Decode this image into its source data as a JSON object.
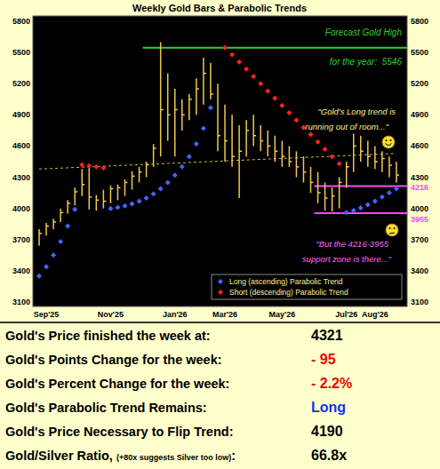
{
  "chart_data": {
    "type": "ohlc",
    "title": "Weekly Gold Bars & Parabolic Trends",
    "categories": [
      null,
      "Sep'25",
      null,
      null,
      null,
      null,
      null,
      null,
      null,
      null,
      "Nov'25",
      null,
      null,
      null,
      null,
      null,
      null,
      null,
      null,
      "Jan'26",
      null,
      null,
      null,
      null,
      null,
      null,
      "Mar'26",
      null,
      null,
      null,
      null,
      null,
      null,
      null,
      "May'26",
      null,
      null,
      null,
      null,
      null,
      null,
      null,
      null,
      "Jul'26",
      null,
      null,
      null,
      "Aug'26",
      null,
      null,
      null
    ],
    "ylim": [
      3100,
      5800
    ],
    "yticks": [
      3100,
      3400,
      3700,
      4000,
      4300,
      4600,
      4900,
      5200,
      5500,
      5800
    ],
    "grid": false,
    "legend": "lower right",
    "series": [
      {
        "type": "ohlc",
        "color": "#f0c850",
        "high": [
          3800,
          3860,
          3900,
          4000,
          4080,
          4200,
          4380,
          4390,
          4130,
          4180,
          4220,
          4230,
          4280,
          4360,
          4400,
          4450,
          4620,
          5600,
          5300,
          5150,
          5050,
          5100,
          5250,
          5450,
          5400,
          5200,
          5000,
          4900,
          4800,
          4850,
          4900,
          4800,
          4750,
          4700,
          4650,
          4600,
          4550,
          4500,
          4400,
          4350,
          4250,
          4200,
          4300,
          4450,
          4720,
          4700,
          4650,
          4600,
          4550,
          4500,
          4450
        ],
        "low": [
          3640,
          3740,
          3800,
          3870,
          3950,
          4030,
          4120,
          3990,
          3980,
          4000,
          4050,
          4080,
          4120,
          4180,
          4250,
          4300,
          4400,
          4500,
          4650,
          4500,
          4750,
          4850,
          4900,
          5000,
          5050,
          4550,
          4450,
          4400,
          4100,
          4500,
          4600,
          4550,
          4500,
          4450,
          4400,
          4400,
          4300,
          4250,
          4150,
          4050,
          3980,
          3970,
          4000,
          4200,
          4350,
          4450,
          4400,
          4380,
          4350,
          4300,
          4250
        ],
        "close": [
          3760,
          3830,
          3870,
          3960,
          4050,
          4160,
          4230,
          4110,
          4080,
          4070,
          4190,
          4200,
          4250,
          4310,
          4350,
          4420,
          4580,
          4950,
          4900,
          4950,
          4900,
          5050,
          5150,
          5300,
          5100,
          4700,
          4650,
          4500,
          4550,
          4750,
          4700,
          4650,
          4600,
          4550,
          4500,
          4450,
          4400,
          4350,
          4250,
          4150,
          4100,
          4120,
          4250,
          4400,
          4600,
          4550,
          4500,
          4450,
          4480,
          4416,
          4321
        ]
      },
      {
        "name": "Long (ascending) Parabolic Trend",
        "type": "scatter",
        "marker": "diamond",
        "color": "#4466ff",
        "values": [
          3350,
          3440,
          3550,
          3680,
          3830,
          3990,
          null,
          null,
          null,
          null,
          4000,
          4010,
          4025,
          4045,
          4070,
          4100,
          4140,
          4190,
          4250,
          4320,
          4400,
          4500,
          4620,
          4770,
          4970,
          null,
          null,
          null,
          null,
          null,
          null,
          null,
          null,
          null,
          null,
          null,
          null,
          null,
          null,
          null,
          null,
          null,
          null,
          3960,
          3980,
          4005,
          4035,
          4070,
          4110,
          4150,
          4190
        ]
      },
      {
        "name": "Short (descending) Parabolic Trend",
        "type": "scatter",
        "marker": "diamond",
        "color": "#ff2222",
        "values": [
          null,
          null,
          null,
          null,
          null,
          null,
          4420,
          4410,
          4400,
          4390,
          null,
          null,
          null,
          null,
          null,
          null,
          null,
          null,
          null,
          null,
          null,
          null,
          null,
          null,
          null,
          null,
          5546,
          5480,
          5410,
          5340,
          5270,
          5200,
          5130,
          5060,
          4990,
          4920,
          4850,
          4780,
          4710,
          4640,
          4570,
          4500,
          4430,
          null,
          null,
          null,
          null,
          null,
          null,
          null,
          null
        ]
      },
      {
        "type": "line",
        "line_style": "dashed",
        "color": "#ddbb44",
        "values": [
          4380,
          4382,
          4385,
          4388,
          4391,
          4394,
          4397,
          4400,
          4403,
          4406,
          4409,
          4412,
          4415,
          4418,
          4421,
          4424,
          4427,
          4430,
          4433,
          4436,
          4439,
          4442,
          4445,
          4448,
          4451,
          4454,
          4457,
          4460,
          4463,
          4466,
          4469,
          4472,
          4475,
          4478,
          4481,
          4484,
          4487,
          4490,
          4493,
          4496,
          4499,
          4502,
          4505,
          4508,
          4511,
          4514,
          4517,
          4520,
          4523,
          4526,
          4529
        ]
      }
    ],
    "reference_lines": [
      {
        "value": 5546,
        "from": 15,
        "color": "#33cc33"
      },
      {
        "value": 4216,
        "from": 39,
        "color": "#ff44ff",
        "data_labels": true
      },
      {
        "value": 3955,
        "from": 39,
        "color": "#ff44ff",
        "data_labels": true
      }
    ],
    "annotations": [
      {
        "text": [
          "Forecast Gold High",
          "for the year:  5546"
        ],
        "color": "#33cc33"
      },
      {
        "text": [
          "\"Gold's Long trend is",
          "running out of room...\""
        ],
        "color": "#ffee88"
      },
      {
        "text": [
          "\"But the 4216-3955",
          "support zone is there...\""
        ],
        "color": "#ff66ff"
      }
    ]
  },
  "table": {
    "rows": [
      {
        "label": "Gold's Price finished the week at:",
        "value": "4321",
        "color": "#000000"
      },
      {
        "label": "Gold's Points Change for the week:",
        "value": "- 95",
        "color": "#ee0000"
      },
      {
        "label": "Gold's Percent Change for the week:",
        "value": "- 2.2%",
        "color": "#ee0000"
      },
      {
        "label": "Gold's Parabolic Trend Remains:",
        "value": "Long",
        "color": "#1133ee"
      },
      {
        "label": "Gold's Price Necessary to Flip Trend:",
        "value": "4190",
        "color": "#000000"
      },
      {
        "label": "Gold/Silver Ratio,",
        "note": "(+80x suggests Silver too low)",
        "suffix": ":",
        "value": "66.8x",
        "color": "#000000"
      }
    ]
  }
}
